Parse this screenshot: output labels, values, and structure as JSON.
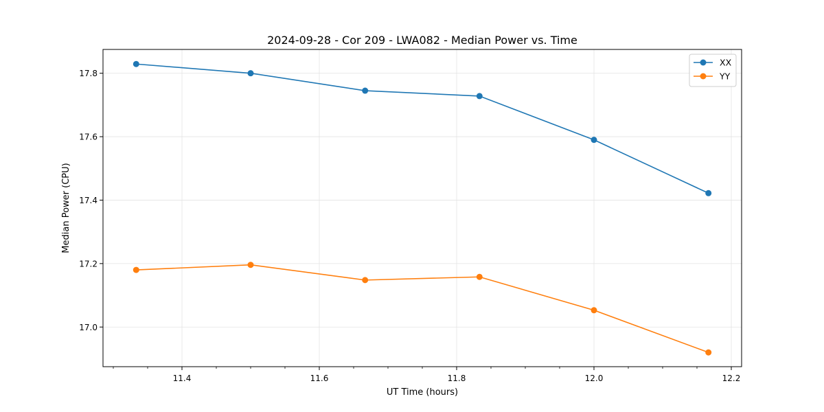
{
  "chart_data": {
    "type": "line",
    "title": "2024-09-28 - Cor 209 - LWA082 - Median Power vs. Time",
    "xlabel": "UT Time (hours)",
    "ylabel": "Median Power (CPU)",
    "xlim": [
      11.285,
      12.215
    ],
    "ylim": [
      16.875,
      17.875
    ],
    "grid": true,
    "legend_position": "top-right",
    "x_ticks": [
      {
        "value": 11.4,
        "label": "11.4"
      },
      {
        "value": 11.6,
        "label": "11.6"
      },
      {
        "value": 11.8,
        "label": "11.8"
      },
      {
        "value": 12.0,
        "label": "12.0"
      },
      {
        "value": 12.2,
        "label": "12.2"
      }
    ],
    "x_minor_ticks": [
      11.3,
      11.35,
      11.45,
      11.5,
      11.55,
      11.65,
      11.7,
      11.75,
      11.85,
      11.9,
      11.95,
      12.05,
      12.1,
      12.15
    ],
    "y_ticks": [
      {
        "value": 17.0,
        "label": "17.0"
      },
      {
        "value": 17.2,
        "label": "17.2"
      },
      {
        "value": 17.4,
        "label": "17.4"
      },
      {
        "value": 17.6,
        "label": "17.6"
      },
      {
        "value": 17.8,
        "label": "17.8"
      }
    ],
    "x": [
      11.3333,
      11.5,
      11.6667,
      11.8333,
      12.0,
      12.1667
    ],
    "series": [
      {
        "name": "XX",
        "color": "#1f77b4",
        "values": [
          17.829,
          17.8,
          17.745,
          17.728,
          17.59,
          17.422
        ]
      },
      {
        "name": "YY",
        "color": "#ff7f0e",
        "values": [
          17.18,
          17.196,
          17.148,
          17.158,
          17.053,
          16.92
        ]
      }
    ]
  }
}
